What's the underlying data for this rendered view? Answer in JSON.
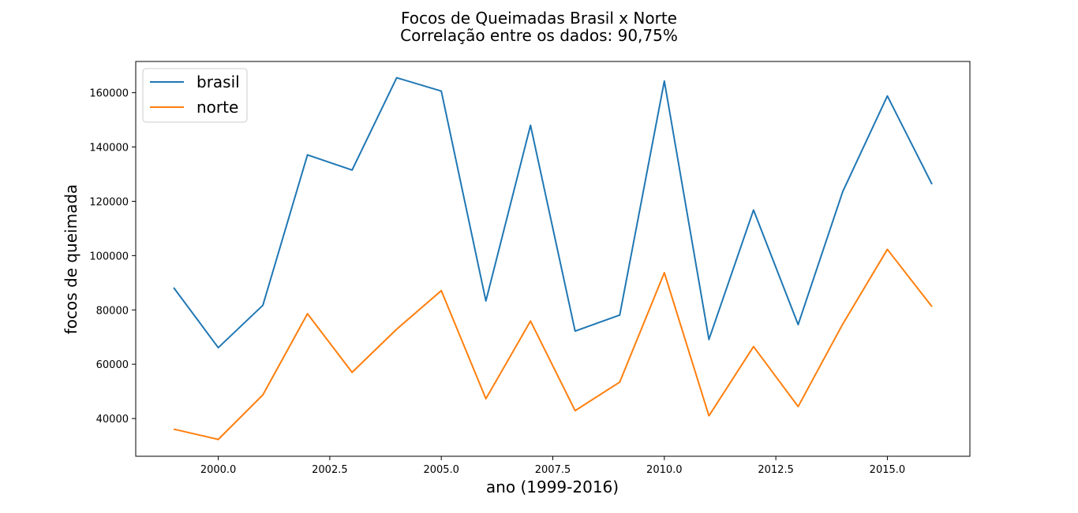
{
  "chart_data": {
    "type": "line",
    "title": "Focos de Queimadas Brasil x Norte",
    "subtitle": "Correlação entre os dados: 90,75%",
    "xlabel": "ano (1999-2016)",
    "ylabel": "focos de queimada",
    "x": [
      1999,
      2000,
      2001,
      2002,
      2003,
      2004,
      2005,
      2006,
      2007,
      2008,
      2009,
      2010,
      2011,
      2012,
      2013,
      2014,
      2015,
      2016
    ],
    "xlim": [
      1998.15,
      2016.85
    ],
    "ylim": [
      26100,
      171500
    ],
    "xticks": [
      2000.0,
      2002.5,
      2005.0,
      2007.5,
      2010.0,
      2012.5,
      2015.0
    ],
    "xtick_labels": [
      "2000.0",
      "2002.5",
      "2005.0",
      "2007.5",
      "2010.0",
      "2012.5",
      "2015.0"
    ],
    "yticks": [
      40000,
      60000,
      80000,
      100000,
      120000,
      140000,
      160000
    ],
    "ytick_labels": [
      "40000",
      "60000",
      "80000",
      "100000",
      "120000",
      "140000",
      "160000"
    ],
    "grid": false,
    "legend_position": "top-left",
    "series": [
      {
        "name": "brasil",
        "color": "#1f77b4",
        "values": [
          88200,
          66100,
          81700,
          137100,
          131500,
          165500,
          160600,
          83300,
          148000,
          72200,
          78100,
          164300,
          69100,
          116800,
          74600,
          123600,
          158800,
          126300
        ]
      },
      {
        "name": "norte",
        "color": "#ff7f0e",
        "values": [
          36100,
          32300,
          48700,
          78600,
          57000,
          72900,
          87100,
          47300,
          75900,
          42900,
          53400,
          93700,
          41000,
          66500,
          44400,
          74800,
          102300,
          81200
        ]
      }
    ]
  }
}
